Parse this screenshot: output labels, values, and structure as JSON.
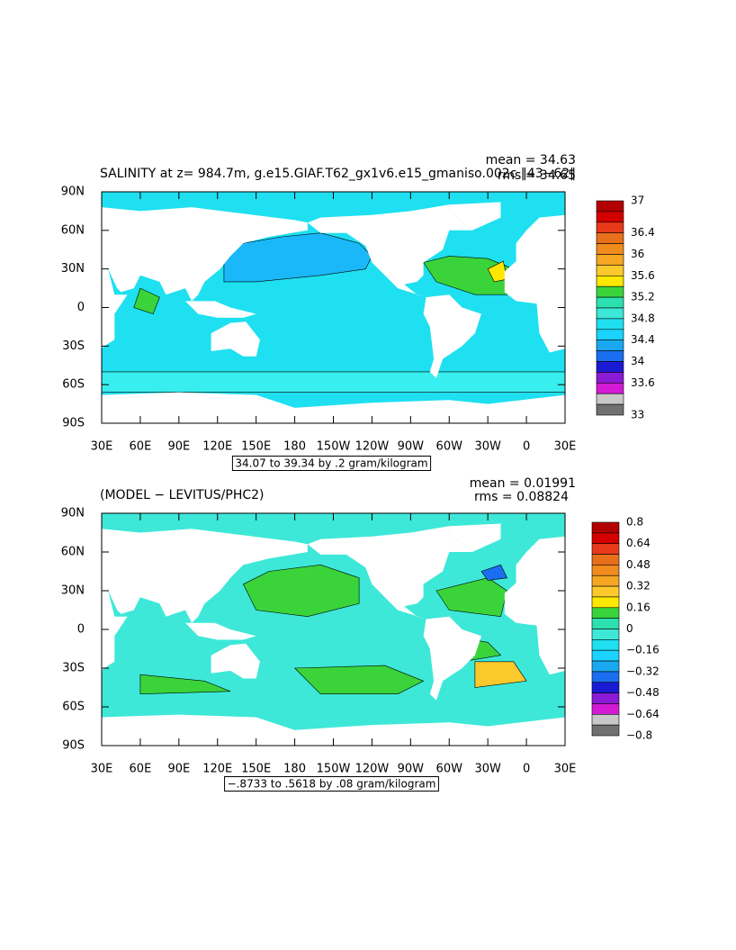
{
  "panels": [
    {
      "title": "SALINITY at z= 984.7m, g.e15.GIAF.T62_gx1v6.e15_gmaniso.002c ‖43−62‖",
      "mean": "mean = 34.63",
      "rms": "rms = 34.65",
      "range": "34.07 to 39.34 by .2 gram/kilogram",
      "colorbar_labels": [
        37,
        36.4,
        36,
        35.6,
        35.2,
        34.8,
        34.4,
        34,
        33.6,
        33
      ]
    },
    {
      "title": "(MODEL − LEVITUS/PHC2)",
      "mean": "mean = 0.01991",
      "rms": "rms = 0.08824",
      "range": "−.8733 to .5618 by .08 gram/kilogram",
      "colorbar_labels": [
        0.8,
        0.64,
        0.48,
        0.32,
        0.16,
        0,
        {
          "value": -0.16,
          "label": "−0.16"
        },
        {
          "value": -0.32,
          "label": "−0.32"
        },
        {
          "value": -0.48,
          "label": "−0.48"
        },
        {
          "value": -0.64,
          "label": "−0.64"
        },
        {
          "value": -0.8,
          "label": "−0.8"
        }
      ]
    }
  ],
  "lat_labels": [
    "90N",
    "60N",
    "30N",
    "0",
    "30S",
    "60S",
    "90S"
  ],
  "lon_labels": [
    "30E",
    "60E",
    "90E",
    "120E",
    "150E",
    "180",
    "150W",
    "120W",
    "90W",
    "60W",
    "30W",
    "0",
    "30E"
  ],
  "colorbar_colors": [
    "#b30000",
    "#d40000",
    "#e83a1a",
    "#e8701a",
    "#f08c1e",
    "#f5a623",
    "#fbc92b",
    "#ffe800",
    "#3ad43a",
    "#2de0b0",
    "#3de8d8",
    "#1ee0f0",
    "#1ad3ff",
    "#1aa8f0",
    "#1a6ef0",
    "#1a1ad4",
    "#8a1ad4",
    "#d41ad4",
    "#c8c8c8",
    "#707070"
  ]
}
